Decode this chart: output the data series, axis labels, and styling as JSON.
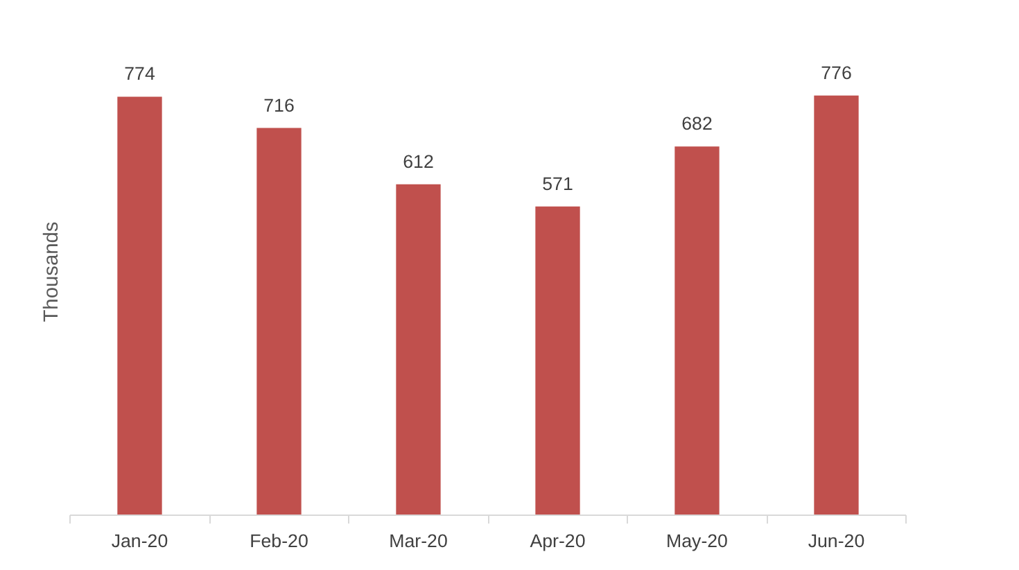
{
  "chart_data": {
    "type": "bar",
    "ylabel": "Thousands",
    "categories": [
      "Jan-20",
      "Feb-20",
      "Mar-20",
      "Apr-20",
      "May-20",
      "Jun-20"
    ],
    "values": [
      774,
      716,
      612,
      571,
      682,
      776
    ],
    "color": "#c0504d",
    "data_labels": true,
    "tick_labels": "x"
  }
}
